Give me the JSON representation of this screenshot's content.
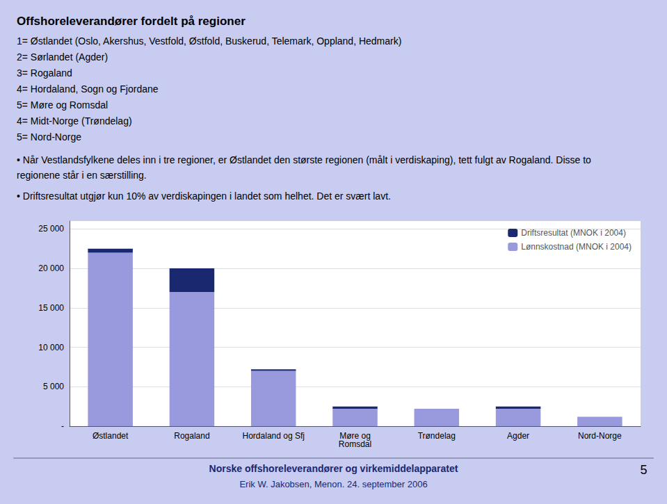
{
  "chart_data": {
    "type": "bar",
    "title": "Offshoreleverandører fordelt på regioner",
    "subtitle": [
      "1= Østlandet (Oslo, Akershus, Vestfold, Østfold, Buskerud, Telemark, Oppland, Hedmark)",
      "2= Sørlandet (Agder)",
      "3= Rogaland",
      "4= Hordaland, Sogn og Fjordane",
      "5= Møre og Romsdal",
      "4= Midt-Norge (Trøndelag)",
      "5= Nord-Norge"
    ],
    "annotations": [
      "• Når Vestlandsfylkene deles inn i tre regioner, er Østlandet den største regionen (målt i verdiskaping), tett fulgt av Rogaland. Disse to regionene står i en særstilling.",
      "• Driftsresultat utgjør kun 10% av verdiskapingen i landet som helhet. Det er svært lavt.",
      "Norske offshoreleverandører og virkemiddelapparatet",
      "Erik W. Jakobsen, Menon. 24. september 2006",
      "5"
    ],
    "categories": [
      "Østlandet",
      "Rogaland",
      "Hordaland og Sfj",
      "Møre og\nRomsdal",
      "Trøndelag",
      "Agder",
      "Nord-Norge"
    ],
    "series": [
      {
        "name": "Lønnskostnad (MNOK i 2004)",
        "color": "#9999dd",
        "values": [
          22000,
          17000,
          7000,
          2200,
          2200,
          2200,
          1200
        ]
      },
      {
        "name": "Driftsresultat (MNOK i 2004)",
        "color": "#1a2870",
        "values": [
          500,
          3000,
          200,
          300,
          0,
          300,
          0
        ]
      }
    ],
    "stacked": true,
    "ylim": [
      0,
      26000
    ],
    "yticks": [
      {
        "value": 0,
        "label": "-"
      },
      {
        "value": 5000,
        "label": "5 000"
      },
      {
        "value": 10000,
        "label": "10 000"
      },
      {
        "value": 15000,
        "label": "15 000"
      },
      {
        "value": 20000,
        "label": "20 000"
      },
      {
        "value": 25000,
        "label": "25 000"
      }
    ],
    "grid": true,
    "legend": "upper right"
  }
}
